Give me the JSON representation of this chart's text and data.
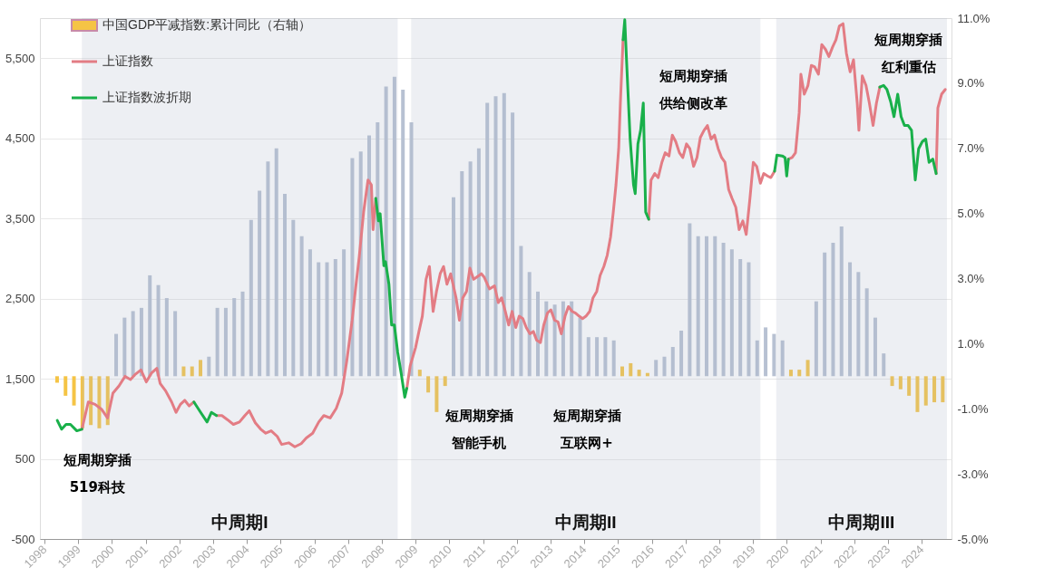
{
  "chart_data": {
    "type": "line",
    "xlim": [
      1998,
      2024.75
    ],
    "xticks": [
      1998,
      1999,
      2000,
      2001,
      2002,
      2003,
      2004,
      2005,
      2006,
      2007,
      2008,
      2009,
      2010,
      2011,
      2012,
      2013,
      2014,
      2015,
      2016,
      2017,
      2018,
      2019,
      2020,
      2021,
      2022,
      2023,
      2024
    ],
    "ylim": [
      -500,
      6000
    ],
    "yticks": [
      -500,
      500,
      {
        "value": 1500,
        "label": "1,500"
      },
      {
        "value": 2500,
        "label": "2,500"
      },
      {
        "value": 3500,
        "label": "3,500"
      },
      {
        "value": 4500,
        "label": "4,500"
      },
      {
        "value": 5500,
        "label": "5,500"
      }
    ],
    "y2lim": [
      -5,
      11
    ],
    "y2ticks": [
      {
        "value": -5,
        "label": "-5.0%"
      },
      {
        "value": -3,
        "label": "-3.0%"
      },
      {
        "value": -1,
        "label": "-1.0%"
      },
      {
        "value": 1,
        "label": "1.0%"
      },
      {
        "value": 3,
        "label": "3.0%"
      },
      {
        "value": 5,
        "label": "5.0%"
      },
      {
        "value": 7,
        "label": "7.0%"
      },
      {
        "value": 9,
        "label": "9.0%"
      },
      {
        "value": 11,
        "label": "11.0%"
      }
    ],
    "grid": "y",
    "legend": "top left",
    "marker": "none",
    "line_style": "solid",
    "x": [
      1998.38,
      1998.51,
      1998.64,
      1998.77,
      1998.96,
      1999.11,
      1999.3,
      1999.5,
      1999.69,
      1999.87,
      2000.03,
      2000.21,
      2000.39,
      2000.55,
      2000.68,
      2000.86,
      2001.02,
      2001.17,
      2001.33,
      2001.43,
      2001.59,
      2001.77,
      2001.9,
      2002.03,
      2002.16,
      2002.29,
      2002.43,
      2002.63,
      2002.82,
      2002.95,
      2003.1,
      2003.26,
      2003.42,
      2003.6,
      2003.78,
      2003.94,
      2004.07,
      2004.25,
      2004.41,
      2004.56,
      2004.72,
      2004.9,
      2005.03,
      2005.24,
      2005.42,
      2005.61,
      2005.76,
      2005.95,
      2006.13,
      2006.28,
      2006.47,
      2006.65,
      2006.81,
      2006.96,
      2007.12,
      2007.22,
      2007.33,
      2007.46,
      2007.59,
      2007.69,
      2007.74,
      2007.82,
      2007.9,
      2007.95,
      2008.06,
      2008.11,
      2008.21,
      2008.29,
      2008.37,
      2008.47,
      2008.58,
      2008.68,
      2008.74,
      2008.84,
      2009.0,
      2009.1,
      2009.2,
      2009.31,
      2009.41,
      2009.52,
      2009.62,
      2009.73,
      2009.83,
      2009.93,
      2010.04,
      2010.2,
      2010.3,
      2010.4,
      2010.51,
      2010.61,
      2010.72,
      2010.82,
      2010.95,
      2011.03,
      2011.19,
      2011.34,
      2011.45,
      2011.55,
      2011.66,
      2011.76,
      2011.86,
      2011.97,
      2012.07,
      2012.18,
      2012.28,
      2012.39,
      2012.49,
      2012.59,
      2012.7,
      2012.8,
      2012.91,
      2013.01,
      2013.12,
      2013.22,
      2013.32,
      2013.43,
      2013.53,
      2013.64,
      2013.74,
      2013.85,
      2013.95,
      2014.05,
      2014.16,
      2014.26,
      2014.37,
      2014.47,
      2014.58,
      2014.68,
      2014.78,
      2014.86,
      2014.94,
      2015.02,
      2015.07,
      2015.15,
      2015.2,
      2015.25,
      2015.36,
      2015.46,
      2015.51,
      2015.59,
      2015.67,
      2015.75,
      2015.82,
      2015.91,
      2015.98,
      2016.09,
      2016.19,
      2016.3,
      2016.4,
      2016.51,
      2016.61,
      2016.71,
      2016.82,
      2016.92,
      2017.03,
      2017.13,
      2017.24,
      2017.34,
      2017.44,
      2017.55,
      2017.65,
      2017.76,
      2017.86,
      2017.97,
      2018.07,
      2018.17,
      2018.28,
      2018.38,
      2018.49,
      2018.59,
      2018.7,
      2018.8,
      2018.91,
      2019.01,
      2019.11,
      2019.22,
      2019.32,
      2019.43,
      2019.53,
      2019.64,
      2019.71,
      2019.87,
      2019.95,
      2020.0,
      2020.05,
      2020.16,
      2020.26,
      2020.37,
      2020.42,
      2020.52,
      2020.63,
      2020.73,
      2020.83,
      2020.94,
      2021.04,
      2021.15,
      2021.25,
      2021.36,
      2021.46,
      2021.56,
      2021.67,
      2021.77,
      2021.88,
      2021.98,
      2022.09,
      2022.14,
      2022.24,
      2022.35,
      2022.45,
      2022.56,
      2022.66,
      2022.76,
      2022.87,
      2022.97,
      2023.08,
      2023.18,
      2023.29,
      2023.39,
      2023.49,
      2023.6,
      2023.7,
      2023.81,
      2023.91,
      2024.02,
      2024.12,
      2024.22,
      2024.33,
      2024.43,
      2024.48,
      2024.59,
      2024.7
    ],
    "series": [
      {
        "name": "中国GDP平减指数:累计同比（右轴）",
        "type": "bar",
        "axis": "y2",
        "x": [
          1998.375,
          1998.625,
          1998.875,
          1999.125,
          1999.375,
          1999.625,
          1999.875,
          2000.125,
          2000.375,
          2000.625,
          2000.875,
          2001.125,
          2001.375,
          2001.625,
          2001.875,
          2002.125,
          2002.375,
          2002.625,
          2002.875,
          2003.125,
          2003.375,
          2003.625,
          2003.875,
          2004.125,
          2004.375,
          2004.625,
          2004.875,
          2005.125,
          2005.375,
          2005.625,
          2005.875,
          2006.125,
          2006.375,
          2006.625,
          2006.875,
          2007.125,
          2007.375,
          2007.625,
          2007.875,
          2008.125,
          2008.375,
          2008.625,
          2008.875,
          2009.125,
          2009.375,
          2009.625,
          2009.875,
          2010.125,
          2010.375,
          2010.625,
          2010.875,
          2011.125,
          2011.375,
          2011.625,
          2011.875,
          2012.125,
          2012.375,
          2012.625,
          2012.875,
          2013.125,
          2013.375,
          2013.625,
          2013.875,
          2014.125,
          2014.375,
          2014.625,
          2014.875,
          2015.125,
          2015.375,
          2015.625,
          2015.875,
          2016.125,
          2016.375,
          2016.625,
          2016.875,
          2017.125,
          2017.375,
          2017.625,
          2017.875,
          2018.125,
          2018.375,
          2018.625,
          2018.875,
          2019.125,
          2019.375,
          2019.625,
          2019.875,
          2020.125,
          2020.375,
          2020.625,
          2020.875,
          2021.125,
          2021.375,
          2021.625,
          2021.875,
          2022.125,
          2022.375,
          2022.625,
          2022.875,
          2023.125,
          2023.375,
          2023.625,
          2023.875,
          2024.125,
          2024.375,
          2024.625
        ],
        "values": [
          -0.2,
          -0.6,
          -0.9,
          -1.6,
          -1.5,
          -1.6,
          -1.5,
          1.3,
          1.8,
          2.0,
          2.1,
          3.1,
          2.8,
          2.4,
          2.0,
          0.3,
          0.3,
          0.5,
          0.6,
          2.1,
          2.1,
          2.4,
          2.6,
          4.8,
          5.7,
          6.6,
          7.0,
          5.6,
          4.8,
          4.3,
          3.9,
          3.5,
          3.5,
          3.6,
          3.9,
          6.7,
          6.9,
          7.4,
          7.8,
          8.9,
          9.2,
          8.8,
          7.8,
          0.2,
          -0.5,
          -1.1,
          -0.3,
          5.5,
          6.3,
          6.6,
          7.0,
          8.4,
          8.6,
          8.7,
          8.1,
          4.0,
          3.2,
          2.6,
          2.3,
          2.2,
          2.3,
          2.3,
          1.8,
          1.2,
          1.2,
          1.2,
          1.1,
          0.3,
          0.4,
          0.2,
          0.1,
          0.5,
          0.6,
          0.9,
          1.4,
          4.7,
          4.3,
          4.3,
          4.3,
          4.1,
          3.9,
          3.6,
          3.5,
          1.1,
          1.5,
          1.3,
          1.1,
          0.2,
          0.2,
          0.5,
          2.3,
          3.8,
          4.1,
          4.6,
          3.5,
          3.2,
          2.7,
          1.8,
          0.7,
          -0.3,
          -0.4,
          -0.6,
          -1.1,
          -0.9,
          -0.8,
          -0.8
        ],
        "colors": [
          "#f5c445",
          "#f5c445",
          "#f5c445",
          "#f5c445",
          "#f5c445",
          "#f5c445",
          "#f5c445",
          "#b7c1d2",
          "#b7c1d2",
          "#b7c1d2",
          "#b7c1d2",
          "#b7c1d2",
          "#b7c1d2",
          "#b7c1d2",
          "#b7c1d2",
          "#f5c445",
          "#f5c445",
          "#f5c445",
          "#b7c1d2",
          "#b7c1d2",
          "#b7c1d2",
          "#b7c1d2",
          "#b7c1d2",
          "#b7c1d2",
          "#b7c1d2",
          "#b7c1d2",
          "#b7c1d2",
          "#b7c1d2",
          "#b7c1d2",
          "#b7c1d2",
          "#b7c1d2",
          "#b7c1d2",
          "#b7c1d2",
          "#b7c1d2",
          "#b7c1d2",
          "#b7c1d2",
          "#b7c1d2",
          "#b7c1d2",
          "#b7c1d2",
          "#b7c1d2",
          "#b7c1d2",
          "#b7c1d2",
          "#b7c1d2",
          "#f5c445",
          "#f5c445",
          "#f5c445",
          "#f5c445",
          "#b7c1d2",
          "#b7c1d2",
          "#b7c1d2",
          "#b7c1d2",
          "#b7c1d2",
          "#b7c1d2",
          "#b7c1d2",
          "#b7c1d2",
          "#b7c1d2",
          "#b7c1d2",
          "#b7c1d2",
          "#b7c1d2",
          "#b7c1d2",
          "#b7c1d2",
          "#b7c1d2",
          "#b7c1d2",
          "#b7c1d2",
          "#b7c1d2",
          "#b7c1d2",
          "#b7c1d2",
          "#f5c445",
          "#f5c445",
          "#f5c445",
          "#f5c445",
          "#b7c1d2",
          "#b7c1d2",
          "#b7c1d2",
          "#b7c1d2",
          "#b7c1d2",
          "#b7c1d2",
          "#b7c1d2",
          "#b7c1d2",
          "#b7c1d2",
          "#b7c1d2",
          "#b7c1d2",
          "#b7c1d2",
          "#b7c1d2",
          "#b7c1d2",
          "#b7c1d2",
          "#b7c1d2",
          "#f5c445",
          "#f5c445",
          "#f5c445",
          "#b7c1d2",
          "#b7c1d2",
          "#b7c1d2",
          "#b7c1d2",
          "#b7c1d2",
          "#b7c1d2",
          "#b7c1d2",
          "#b7c1d2",
          "#b7c1d2",
          "#f5c445",
          "#f5c445",
          "#f5c445",
          "#f5c445",
          "#f5c445",
          "#f5c445",
          "#f5c445"
        ]
      },
      {
        "name": "上证指数",
        "color": "#e37c84",
        "values": [
          null,
          null,
          null,
          null,
          null,
          870,
          1210,
          1180,
          1120,
          1010,
          1320,
          1410,
          1530,
          1490,
          1550,
          1610,
          1460,
          1570,
          1630,
          1440,
          1350,
          1210,
          1080,
          1180,
          1230,
          1160,
          1210,
          null,
          null,
          null,
          1040,
          1040,
          990,
          930,
          960,
          1040,
          1100,
          950,
          870,
          820,
          850,
          780,
          680,
          700,
          650,
          690,
          760,
          820,
          960,
          1040,
          1010,
          1130,
          1320,
          1720,
          2230,
          2620,
          3020,
          3580,
          3980,
          3920,
          3360,
          3750,
          null,
          null,
          null,
          null,
          null,
          null,
          null,
          null,
          null,
          null,
          1380,
          1660,
          1890,
          2090,
          2280,
          2740,
          2900,
          2340,
          2590,
          2810,
          2900,
          2680,
          2810,
          2510,
          2230,
          2510,
          2590,
          2880,
          2740,
          2770,
          2810,
          2770,
          2620,
          2660,
          2450,
          2510,
          2340,
          2170,
          2340,
          2140,
          2280,
          2250,
          2140,
          2060,
          2090,
          1980,
          1950,
          2170,
          2320,
          2360,
          2230,
          2210,
          2060,
          2280,
          2400,
          2340,
          2320,
          2280,
          2250,
          2280,
          2340,
          2510,
          2590,
          2790,
          2900,
          3040,
          3270,
          3580,
          3920,
          4370,
          4940,
          5730,
          null,
          null,
          null,
          null,
          null,
          null,
          null,
          null,
          null,
          3490,
          3980,
          4060,
          4010,
          4200,
          4320,
          4280,
          4540,
          4460,
          4320,
          4260,
          4430,
          4370,
          4150,
          4260,
          4510,
          4600,
          4660,
          4490,
          4540,
          4370,
          4260,
          4200,
          3860,
          3750,
          3640,
          3360,
          3470,
          3300,
          3750,
          4200,
          4150,
          3940,
          4060,
          4030,
          4010,
          4090,
          null,
          null,
          null,
          null,
          4240,
          4260,
          4320,
          4820,
          5300,
          5050,
          5160,
          5410,
          5390,
          5300,
          5670,
          5610,
          5520,
          5640,
          5730,
          5900,
          5930,
          5560,
          5330,
          5480,
          4940,
          4600,
          5280,
          5160,
          4940,
          4660,
          4940,
          5140,
          null,
          null,
          null,
          null,
          null,
          null,
          null,
          null,
          null,
          null,
          null,
          null,
          null,
          null,
          null,
          4060,
          4880,
          5050,
          5110
        ]
      },
      {
        "name": "上证指数波折期",
        "color": "#19b04a",
        "values": [
          980,
          870,
          930,
          930,
          850,
          870,
          null,
          null,
          null,
          null,
          null,
          null,
          null,
          null,
          null,
          null,
          null,
          null,
          null,
          null,
          null,
          null,
          null,
          null,
          null,
          null,
          1210,
          1080,
          960,
          1080,
          1040,
          null,
          null,
          null,
          null,
          null,
          null,
          null,
          null,
          null,
          null,
          null,
          null,
          null,
          null,
          null,
          null,
          null,
          null,
          null,
          null,
          null,
          null,
          null,
          null,
          null,
          null,
          null,
          null,
          null,
          null,
          3750,
          3470,
          3560,
          2910,
          2960,
          2680,
          2170,
          2170,
          1830,
          1550,
          1270,
          1380,
          null,
          null,
          null,
          null,
          null,
          null,
          null,
          null,
          null,
          null,
          null,
          null,
          null,
          null,
          null,
          null,
          null,
          null,
          null,
          null,
          null,
          null,
          null,
          null,
          null,
          null,
          null,
          null,
          null,
          null,
          null,
          null,
          null,
          null,
          null,
          null,
          null,
          null,
          null,
          null,
          null,
          null,
          null,
          null,
          null,
          null,
          null,
          null,
          null,
          null,
          null,
          null,
          null,
          null,
          null,
          null,
          null,
          null,
          null,
          null,
          5730,
          5980,
          5500,
          4490,
          3920,
          3810,
          4430,
          4600,
          4940,
          3580,
          3490,
          null,
          null,
          null,
          null,
          null,
          null,
          null,
          null,
          null,
          null,
          null,
          null,
          null,
          null,
          null,
          null,
          null,
          null,
          null,
          null,
          null,
          null,
          null,
          null,
          null,
          null,
          null,
          null,
          null,
          null,
          null,
          null,
          null,
          null,
          null,
          4090,
          4290,
          4280,
          4260,
          4030,
          4240,
          null,
          null,
          null,
          null,
          null,
          null,
          null,
          null,
          null,
          null,
          null,
          null,
          null,
          null,
          null,
          null,
          null,
          null,
          null,
          null,
          null,
          null,
          null,
          null,
          null,
          null,
          5140,
          5160,
          5110,
          4960,
          4770,
          5050,
          4770,
          4660,
          4660,
          4600,
          3980,
          4370,
          4460,
          4490,
          4200,
          4240,
          4060,
          null,
          null,
          null
        ]
      }
    ],
    "bands": [
      {
        "axis": "x",
        "from": 1999.11,
        "to": 2008.47,
        "label": "中周期I",
        "color": "#acb5c9"
      },
      {
        "axis": "x",
        "from": 2008.87,
        "to": 2019.22,
        "label": "中周期II",
        "color": "#acb5c9"
      },
      {
        "axis": "x",
        "from": 2019.69,
        "to": 2024.75,
        "label": "中周期III",
        "color": "#acb5c9"
      }
    ],
    "annotations": [
      "短周期穿插",
      "519科技",
      "短周期穿插",
      "智能手机",
      "短周期穿插",
      "互联网+",
      "短周期穿插",
      "供给侧改革",
      "短周期穿插",
      "红利重估"
    ]
  }
}
